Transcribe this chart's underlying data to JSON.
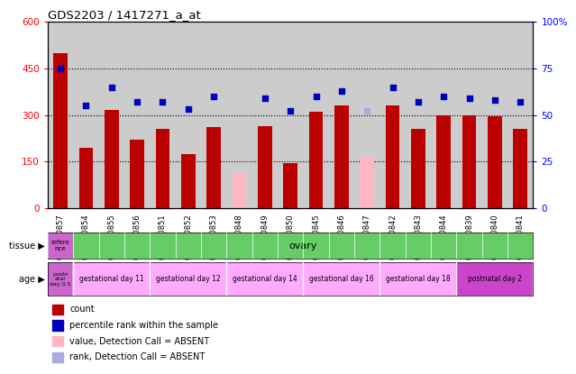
{
  "title": "GDS2203 / 1417271_a_at",
  "samples": [
    "GSM120857",
    "GSM120854",
    "GSM120855",
    "GSM120856",
    "GSM120851",
    "GSM120852",
    "GSM120853",
    "GSM120848",
    "GSM120849",
    "GSM120850",
    "GSM120845",
    "GSM120846",
    "GSM120847",
    "GSM120842",
    "GSM120843",
    "GSM120844",
    "GSM120839",
    "GSM120840",
    "GSM120841"
  ],
  "count_values": [
    500,
    195,
    315,
    220,
    255,
    175,
    260,
    null,
    265,
    145,
    310,
    330,
    null,
    330,
    255,
    300,
    300,
    295,
    255
  ],
  "count_absent": [
    null,
    null,
    null,
    null,
    null,
    null,
    null,
    110,
    null,
    null,
    null,
    null,
    165,
    null,
    null,
    null,
    null,
    null,
    null
  ],
  "rank_values_pct": [
    75,
    55,
    65,
    57,
    57,
    53,
    60,
    null,
    59,
    52,
    60,
    63,
    null,
    65,
    57,
    60,
    59,
    58,
    57
  ],
  "rank_absent_pct": [
    null,
    null,
    null,
    null,
    null,
    null,
    null,
    null,
    null,
    null,
    null,
    null,
    52,
    null,
    null,
    null,
    null,
    null,
    null
  ],
  "tissue_ref": "refere\nnce",
  "tissue_ovary": "ovary",
  "age_ref": "postn\natal\nday 0.5",
  "ylim_left": [
    0,
    600
  ],
  "ylim_right": [
    0,
    100
  ],
  "yticks_left": [
    0,
    150,
    300,
    450,
    600
  ],
  "yticks_right": [
    0,
    25,
    50,
    75,
    100
  ],
  "bar_color_present": "#BB0000",
  "bar_color_absent": "#FFB6C1",
  "rank_color_present": "#0000BB",
  "rank_color_absent": "#AAAADD",
  "bar_width": 0.55,
  "bg_color": "#CCCCCC",
  "tissue_bg": "#66CC66",
  "tissue_ref_bg": "#CC66CC",
  "age_ref_bg": "#CC66CC",
  "age_group_color": "#FFAAFF",
  "postnatal_color": "#CC44CC"
}
